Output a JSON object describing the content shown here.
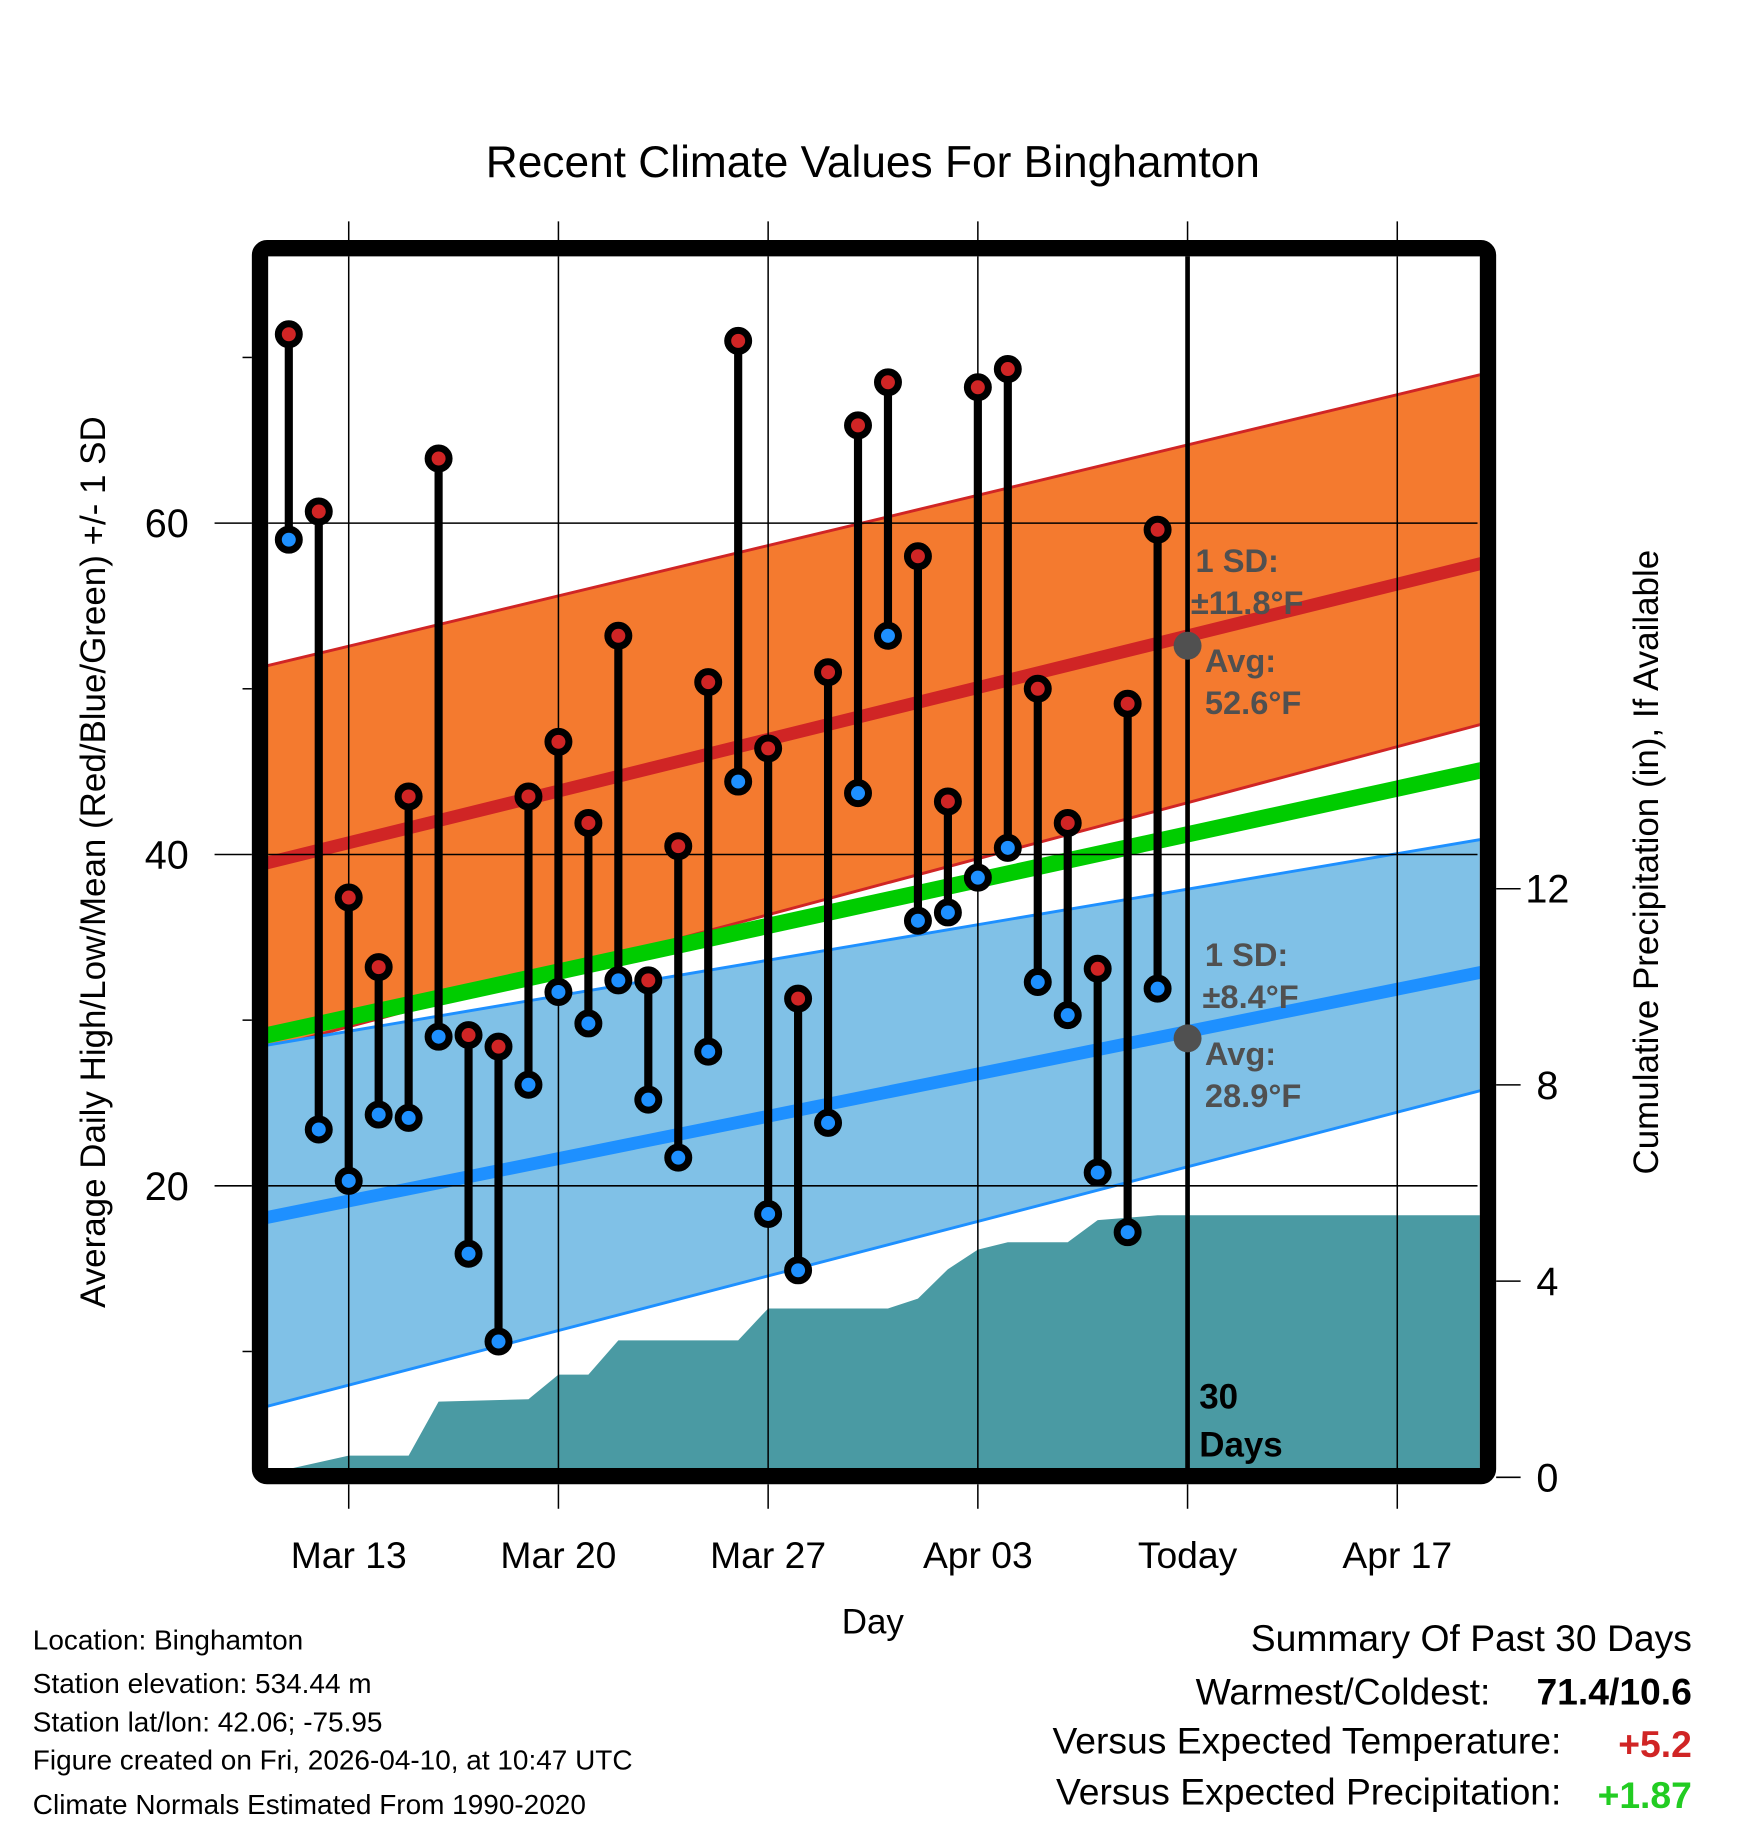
{
  "chart_data": {
    "type": "line",
    "title": "Recent Climate Values For Binghamton",
    "xlabel": "Day",
    "ylabel": "Average Daily High/Low/Mean (Red/Blue/Green) +/- 1 SD",
    "y2label": "Cumulative Precipitation (in), If Available",
    "ylim": [
      3,
      76
    ],
    "y2lim": [
      0,
      17.6
    ],
    "x_start": "Mar 10",
    "x_end": "Apr 20",
    "grid": true,
    "yticks": [
      20,
      40,
      60
    ],
    "yminor_ticks": [
      10,
      30,
      50,
      70
    ],
    "y2ticks": [
      0,
      4,
      8,
      12
    ],
    "xticks": [
      {
        "label": "Mar 13",
        "day": 3
      },
      {
        "label": "Mar 20",
        "day": 10
      },
      {
        "label": "Mar 27",
        "day": 17
      },
      {
        "label": "Apr 03",
        "day": 24
      },
      {
        "label": "Today",
        "day": 31
      },
      {
        "label": "Apr 17",
        "day": 38
      }
    ],
    "today_day": 31,
    "today_label_lines": [
      "30",
      "Days"
    ],
    "observed": {
      "days": [
        1,
        2,
        3,
        4,
        5,
        6,
        7,
        8,
        9,
        10,
        11,
        12,
        13,
        14,
        15,
        16,
        17,
        18,
        19,
        20,
        21,
        22,
        23,
        24,
        25,
        26,
        27,
        28,
        29,
        30
      ],
      "dates": [
        "Mar 11",
        "Mar 12",
        "Mar 13",
        "Mar 14",
        "Mar 15",
        "Mar 16",
        "Mar 17",
        "Mar 18",
        "Mar 19",
        "Mar 20",
        "Mar 21",
        "Mar 22",
        "Mar 23",
        "Mar 24",
        "Mar 25",
        "Mar 26",
        "Mar 27",
        "Mar 28",
        "Mar 29",
        "Mar 30",
        "Mar 31",
        "Apr 01",
        "Apr 02",
        "Apr 03",
        "Apr 04",
        "Apr 05",
        "Apr 06",
        "Apr 07",
        "Apr 08",
        "Apr 09"
      ],
      "high": [
        71.4,
        60.7,
        37.4,
        33.2,
        43.5,
        63.9,
        29.1,
        28.4,
        43.5,
        46.8,
        41.9,
        53.2,
        32.4,
        40.5,
        50.4,
        71.0,
        46.4,
        31.3,
        51.0,
        65.9,
        68.5,
        58.0,
        43.2,
        68.2,
        69.3,
        50.0,
        41.9,
        33.1,
        49.1,
        59.6
      ],
      "low": [
        59.0,
        23.4,
        20.3,
        24.3,
        24.1,
        29.0,
        15.9,
        10.6,
        26.1,
        31.7,
        29.8,
        32.4,
        25.2,
        21.7,
        28.1,
        44.4,
        18.3,
        14.9,
        23.8,
        43.7,
        53.2,
        36.0,
        36.5,
        38.6,
        40.4,
        32.3,
        30.3,
        20.8,
        17.2,
        31.9
      ]
    },
    "normals": {
      "days_start": 0.3,
      "days_end": 41.1,
      "high_mean": [
        39.5,
        57.7
      ],
      "high_upper": [
        51.4,
        69.1
      ],
      "high_lower": [
        28.3,
        48.0
      ],
      "mean": [
        29.1,
        45.2
      ],
      "low_mean": [
        18.1,
        33.0
      ],
      "low_upper": [
        28.5,
        41.0
      ],
      "low_lower": [
        6.7,
        25.9
      ]
    },
    "precip_cumulative": {
      "days": [
        0.8,
        3,
        5,
        6,
        9,
        10,
        11,
        12,
        16,
        17,
        21,
        22,
        23,
        24,
        25,
        27,
        28,
        29,
        30,
        41.1
      ],
      "values": [
        0,
        0.3,
        0.3,
        1.4,
        1.45,
        1.95,
        1.95,
        2.65,
        2.65,
        3.3,
        3.3,
        3.5,
        4.1,
        4.5,
        4.65,
        4.65,
        5.1,
        5.15,
        5.2,
        5.2
      ]
    },
    "annotations": {
      "high_sd": [
        "1 SD:",
        "±11.8°F"
      ],
      "high_avg": [
        "Avg:",
        "52.6°F"
      ],
      "low_sd": [
        "1 SD:",
        "±8.4°F"
      ],
      "low_avg": [
        "Avg:",
        "28.9°F"
      ],
      "high_avg_value": 52.6,
      "low_avg_value": 28.9
    },
    "colors": {
      "high_band": "#F47A2F",
      "high_line": "#D02525",
      "mean_line": "#00CC00",
      "low_band": "#80C1E7",
      "low_line": "#1E90FF",
      "precip": "#4A9AA3",
      "high_dot": "#D02525",
      "low_dot": "#1E90FF",
      "annotation": "#505050",
      "warm_value": "#D02525",
      "precip_value": "#22CC22"
    }
  },
  "footer_left": [
    "Location: Binghamton",
    "Station elevation: 534.44 m",
    "Station lat/lon: 42.06; -75.95",
    "Figure created on Fri, 2026-04-10, at 10:47 UTC",
    "Climate Normals Estimated From 1990-2020"
  ],
  "summary": {
    "title": "Summary Of Past 30 Days",
    "warmest_coldest_label": "Warmest/Coldest:",
    "warmest_coldest_value": "71.4/10.6",
    "temp_label": "Versus Expected Temperature:",
    "temp_value": "+5.2",
    "precip_label": "Versus Expected Precipitation:",
    "precip_value": "+1.87"
  }
}
